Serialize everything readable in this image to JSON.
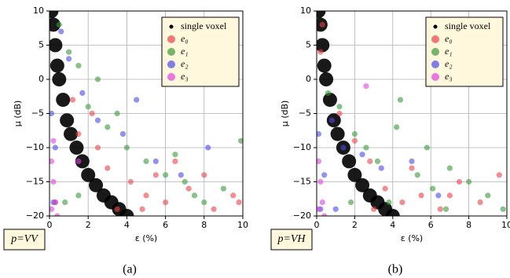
{
  "chart_data": [
    {
      "type": "scatter",
      "xlabel": "ε (%)",
      "ylabel": "μ (dB)",
      "annotation": "p=VV",
      "caption": "(a)",
      "xlim": [
        0,
        10
      ],
      "ylim": [
        -20,
        10
      ],
      "xticks": [
        0,
        2,
        4,
        6,
        8,
        10
      ],
      "yticks": [
        {
          "value": -20,
          "label": "−20"
        },
        {
          "value": -15,
          "label": "−15"
        },
        {
          "value": -10,
          "label": "−10"
        },
        {
          "value": -5,
          "label": "−5"
        },
        0,
        5,
        10
      ],
      "grid": true,
      "legend": "upper right",
      "series": [
        {
          "name": "single voxel",
          "color": "#000000",
          "x": [
            0.1,
            0.2,
            0.3,
            0.4,
            0.5,
            0.7,
            0.9,
            1.1,
            1.4,
            1.7,
            2.0,
            2.4,
            2.8,
            3.2,
            3.6,
            4.0
          ],
          "values": [
            10,
            8,
            5,
            2,
            0,
            -3,
            -6,
            -8,
            -10,
            -12,
            -14,
            -15.5,
            -17,
            -18,
            -19,
            -20
          ]
        },
        {
          "name": "e₀",
          "color": "#e8424a",
          "x": [
            1.5,
            2.5,
            3.0,
            4.2,
            5.0,
            6.0,
            7.2,
            8.5,
            9.5,
            3.5,
            5.5,
            2.2,
            6.5,
            8.0,
            9.8,
            4.8,
            1.2,
            0.3
          ],
          "values": [
            -8,
            -10,
            -13,
            -15,
            -17,
            -18,
            -16,
            -19,
            -17,
            -19,
            -14,
            -5,
            -12,
            -14,
            -18,
            -19,
            -3,
            -18
          ]
        },
        {
          "name": "e₁",
          "color": "#3a9a3a",
          "x": [
            0.5,
            1.0,
            1.5,
            2.0,
            3.0,
            4.0,
            5.0,
            6.0,
            7.0,
            8.0,
            9.0,
            9.9,
            2.5,
            3.5,
            6.5,
            7.5,
            1.5,
            0.8
          ],
          "values": [
            8,
            4,
            2,
            -4,
            -7,
            -10,
            -12,
            -14,
            -15,
            -18,
            -16,
            -9,
            0,
            -5,
            -11,
            -17,
            -17,
            -18
          ]
        },
        {
          "name": "e₂",
          "color": "#4a4ae8",
          "x": [
            0.1,
            0.3,
            0.6,
            1.0,
            1.7,
            2.5,
            3.8,
            5.5,
            6.8,
            8.2,
            4.5,
            0.2
          ],
          "values": [
            -5,
            -10,
            7,
            3,
            -2,
            -6,
            -8,
            -12,
            -14,
            -10,
            -3,
            -18
          ]
        },
        {
          "name": "e₃",
          "color": "#e040e0",
          "x": [
            0.1,
            0.2,
            0.3,
            0.1,
            0.4,
            1.5,
            0.2
          ],
          "values": [
            -12,
            -15,
            -18,
            -19,
            -20,
            -12,
            -9
          ]
        }
      ]
    },
    {
      "type": "scatter",
      "xlabel": "ε (%)",
      "ylabel": "μ (dB)",
      "annotation": "p=VH",
      "caption": "(b)",
      "xlim": [
        0,
        10
      ],
      "ylim": [
        -20,
        10
      ],
      "xticks": [
        0,
        2,
        4,
        6,
        8,
        10
      ],
      "yticks": [
        {
          "value": -20,
          "label": "−20"
        },
        {
          "value": -15,
          "label": "−15"
        },
        {
          "value": -10,
          "label": "−10"
        },
        {
          "value": -5,
          "label": "−5"
        },
        0,
        5,
        10
      ],
      "grid": true,
      "legend": "upper right",
      "series": [
        {
          "name": "single voxel",
          "color": "#000000",
          "x": [
            0.1,
            0.2,
            0.3,
            0.4,
            0.5,
            0.7,
            0.9,
            1.1,
            1.4,
            1.7,
            2.0,
            2.4,
            2.8,
            3.2,
            3.6,
            4.0
          ],
          "values": [
            10,
            8,
            5,
            2,
            0,
            -3,
            -6,
            -8,
            -10,
            -12,
            -14,
            -15.5,
            -17,
            -18,
            -19,
            -20
          ]
        },
        {
          "name": "e₀",
          "color": "#e8424a",
          "x": [
            0.3,
            1.2,
            2.0,
            2.8,
            3.6,
            4.5,
            5.5,
            6.5,
            7.5,
            8.6,
            9.6,
            3.0,
            5.0,
            7.0,
            0.2
          ],
          "values": [
            8,
            -5,
            -9,
            -12,
            -16,
            -18,
            -17,
            -19,
            -15,
            -18,
            -14,
            -19,
            -13,
            -17,
            4
          ]
        },
        {
          "name": "e₁",
          "color": "#3a9a3a",
          "x": [
            0.6,
            1.2,
            2.0,
            2.6,
            3.2,
            4.4,
            5.3,
            6.1,
            7.0,
            8.0,
            9.0,
            9.8,
            4.2,
            5.8,
            1.8,
            3.8,
            6.8
          ],
          "values": [
            -2,
            -4,
            -8,
            -10,
            -12,
            -3,
            -14,
            -16,
            -13,
            -15,
            -17,
            -19,
            -7,
            -10,
            -18,
            -18,
            -19
          ]
        },
        {
          "name": "e₂",
          "color": "#4a4ae8",
          "x": [
            0.1,
            0.4,
            0.8,
            1.4,
            2.4,
            3.4,
            5.0,
            6.4,
            0.2,
            1.0
          ],
          "values": [
            -8,
            -14,
            -6,
            -10,
            -11,
            -13,
            -12,
            -17,
            -19,
            -19
          ]
        },
        {
          "name": "e₃",
          "color": "#e040e0",
          "x": [
            0.1,
            0.2,
            0.3,
            0.1,
            0.4,
            2.6
          ],
          "values": [
            -12,
            -15,
            -18,
            -19,
            -20,
            -1
          ]
        }
      ]
    }
  ]
}
